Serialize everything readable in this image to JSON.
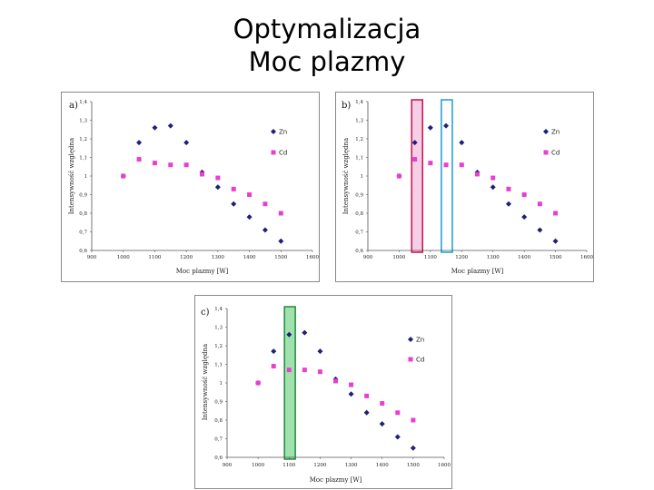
{
  "slide": {
    "title_line1": "Optymalizacja",
    "title_line2": "Moc plazmy"
  },
  "colors": {
    "zn": "#1f1f7a",
    "cd": "#e83fd0",
    "highlight_pink_fill": "#f5c6e0",
    "highlight_pink_stroke": "#c8104a",
    "highlight_blue_fill": "#ffffff",
    "highlight_blue_stroke": "#1a9bd7",
    "highlight_green_fill": "#8fdca0",
    "highlight_green_stroke": "#1e8a3a"
  },
  "chart_data": [
    {
      "type": "scatter",
      "panel_label": "a)",
      "xlabel": "Moc plazmy [W]",
      "ylabel": "Intensywność względna",
      "xlim": [
        900,
        1600
      ],
      "ylim": [
        0.6,
        1.4
      ],
      "xticks": [
        "900",
        "1000",
        "1100",
        "1200",
        "1300",
        "1400",
        "1500",
        "1600"
      ],
      "yticks": [
        "0,6",
        "0,7",
        "0,8",
        "0,9",
        "1",
        "1,1",
        "1,2",
        "1,3",
        "1,4"
      ],
      "legend": [
        "Zn",
        "Cd"
      ],
      "series": [
        {
          "name": "Zn",
          "marker": "diamond",
          "x": [
            1000,
            1050,
            1100,
            1150,
            1200,
            1250,
            1300,
            1350,
            1400,
            1450,
            1500
          ],
          "y": [
            1.0,
            1.18,
            1.26,
            1.27,
            1.18,
            1.02,
            0.94,
            0.85,
            0.78,
            0.71,
            0.65
          ]
        },
        {
          "name": "Cd",
          "marker": "square",
          "x": [
            1000,
            1050,
            1100,
            1150,
            1200,
            1250,
            1300,
            1350,
            1400,
            1450,
            1500
          ],
          "y": [
            1.0,
            1.09,
            1.07,
            1.06,
            1.06,
            1.01,
            0.99,
            0.93,
            0.9,
            0.85,
            0.8
          ]
        }
      ],
      "highlights": []
    },
    {
      "type": "scatter",
      "panel_label": "b)",
      "xlabel": "Moc plazmy [W]",
      "ylabel": "Intensywność względna",
      "xlim": [
        900,
        1600
      ],
      "ylim": [
        0.6,
        1.4
      ],
      "xticks": [
        "900",
        "1000",
        "1100",
        "1200",
        "1300",
        "1400",
        "1500",
        "1600"
      ],
      "yticks": [
        "0,6",
        "0,7",
        "0,8",
        "0,9",
        "1",
        "1,1",
        "1,2",
        "1,3",
        "1,4"
      ],
      "legend": [
        "Zn",
        "Cd"
      ],
      "series": [
        {
          "name": "Zn",
          "marker": "diamond",
          "x": [
            1000,
            1050,
            1100,
            1150,
            1200,
            1250,
            1300,
            1350,
            1400,
            1450,
            1500
          ],
          "y": [
            1.0,
            1.18,
            1.26,
            1.27,
            1.18,
            1.02,
            0.94,
            0.85,
            0.78,
            0.71,
            0.65
          ]
        },
        {
          "name": "Cd",
          "marker": "square",
          "x": [
            1000,
            1050,
            1100,
            1150,
            1200,
            1250,
            1300,
            1350,
            1400,
            1450,
            1500
          ],
          "y": [
            1.0,
            1.09,
            1.07,
            1.06,
            1.06,
            1.01,
            0.99,
            0.93,
            0.9,
            0.85,
            0.8
          ]
        }
      ],
      "highlights": [
        {
          "x_from": 1040,
          "x_to": 1075,
          "style": "pink"
        },
        {
          "x_from": 1135,
          "x_to": 1170,
          "style": "blue"
        }
      ]
    },
    {
      "type": "scatter",
      "panel_label": "c)",
      "xlabel": "Moc plazmy [W]",
      "ylabel": "Intensywność względna",
      "xlim": [
        900,
        1600
      ],
      "ylim": [
        0.6,
        1.4
      ],
      "xticks": [
        "900",
        "1000",
        "1100",
        "1200",
        "1300",
        "1400",
        "1500",
        "1600"
      ],
      "yticks": [
        "0,6",
        "0,7",
        "0,8",
        "0,9",
        "1",
        "1,1",
        "1,2",
        "1,3",
        "1,4"
      ],
      "legend": [
        "Zn",
        "Cd"
      ],
      "series": [
        {
          "name": "Zn",
          "marker": "diamond",
          "x": [
            1000,
            1050,
            1100,
            1150,
            1200,
            1250,
            1300,
            1350,
            1400,
            1450,
            1500
          ],
          "y": [
            1.0,
            1.17,
            1.26,
            1.27,
            1.17,
            1.02,
            0.94,
            0.84,
            0.78,
            0.71,
            0.65
          ]
        },
        {
          "name": "Cd",
          "marker": "square",
          "x": [
            1000,
            1050,
            1100,
            1150,
            1200,
            1250,
            1300,
            1350,
            1400,
            1450,
            1500
          ],
          "y": [
            1.0,
            1.09,
            1.07,
            1.07,
            1.06,
            1.01,
            0.99,
            0.93,
            0.89,
            0.84,
            0.8
          ]
        }
      ],
      "highlights": [
        {
          "x_from": 1085,
          "x_to": 1120,
          "style": "green"
        }
      ]
    }
  ]
}
